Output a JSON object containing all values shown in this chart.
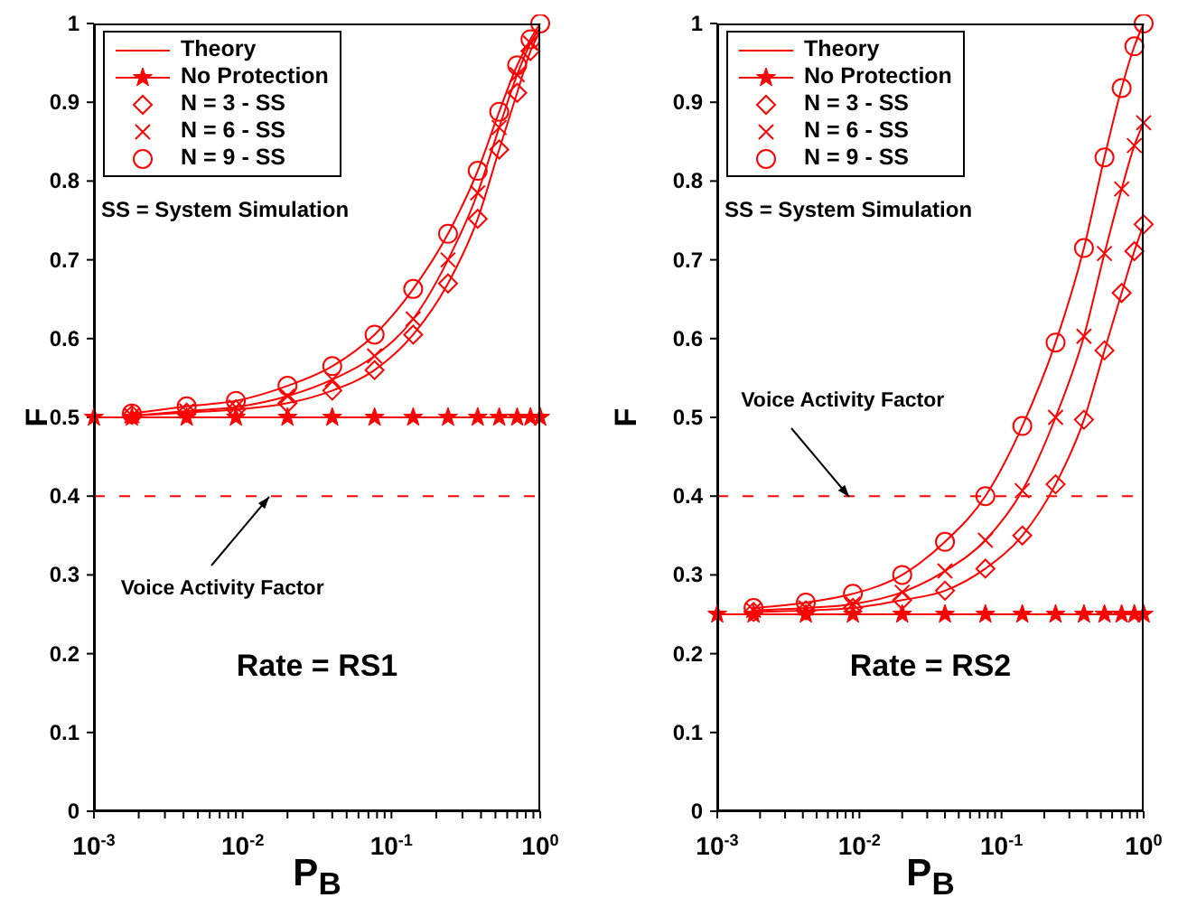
{
  "chart_data": [
    {
      "type": "line",
      "xlabel": "P$_{B}$",
      "ylabel": "F",
      "log": "x",
      "legend": "top left",
      "xlim": [
        0.001,
        1
      ],
      "ylim": [
        0,
        1
      ],
      "xticks": [
        {
          "value": 0.001,
          "label": "10$^{-3}$"
        },
        {
          "value": 0.002,
          "label": null
        },
        {
          "value": 0.003,
          "label": null
        },
        {
          "value": 0.004,
          "label": null
        },
        {
          "value": 0.005,
          "label": null
        },
        {
          "value": 0.006,
          "label": null
        },
        {
          "value": 0.007,
          "label": null
        },
        {
          "value": 0.008,
          "label": null
        },
        {
          "value": 0.009,
          "label": null
        },
        {
          "value": 0.01,
          "label": "10$^{-2}$"
        },
        {
          "value": 0.02,
          "label": null
        },
        {
          "value": 0.03,
          "label": null
        },
        {
          "value": 0.04,
          "label": null
        },
        {
          "value": 0.05,
          "label": null
        },
        {
          "value": 0.06,
          "label": null
        },
        {
          "value": 0.07,
          "label": null
        },
        {
          "value": 0.08,
          "label": null
        },
        {
          "value": 0.09,
          "label": null
        },
        {
          "value": 0.1,
          "label": "10$^{-1}$"
        },
        {
          "value": 0.2,
          "label": null
        },
        {
          "value": 0.3,
          "label": null
        },
        {
          "value": 0.4,
          "label": null
        },
        {
          "value": 0.5,
          "label": null
        },
        {
          "value": 0.6,
          "label": null
        },
        {
          "value": 0.7,
          "label": null
        },
        {
          "value": 0.8,
          "label": null
        },
        {
          "value": 0.9,
          "label": null
        },
        {
          "value": 1,
          "label": "10$^{0}$"
        }
      ],
      "yticks": [
        0,
        0.1,
        0.2,
        0.3,
        0.4,
        0.5,
        0.6,
        0.7,
        0.8,
        0.9,
        1
      ],
      "x": [
        0.0018,
        0.0042,
        0.009,
        0.02,
        0.04,
        0.077,
        0.14,
        0.24,
        0.38,
        0.53,
        0.7,
        0.86,
        1
      ],
      "series": [
        {
          "name": "Theory",
          "marker": "none",
          "color": "#ff0000",
          "values": [
            0.502,
            0.506,
            0.51,
            0.518,
            0.534,
            0.56,
            0.605,
            0.67,
            0.752,
            0.84,
            0.912,
            0.965,
            0.99
          ]
        },
        {
          "marker": "none",
          "color": "#ff0000",
          "values": [
            0.502,
            0.508,
            0.513,
            0.527,
            0.548,
            0.578,
            0.625,
            0.7,
            0.785,
            0.868,
            0.935,
            0.975,
            0.995
          ]
        },
        {
          "marker": "none",
          "color": "#ff0000",
          "values": [
            0.505,
            0.514,
            0.521,
            0.54,
            0.565,
            0.605,
            0.663,
            0.733,
            0.813,
            0.888,
            0.947,
            0.98,
            1
          ]
        },
        {
          "name": "No Protection",
          "marker": "star",
          "color": "#ff0000",
          "x": [
            0.001,
            0.0018,
            0.0042,
            0.009,
            0.02,
            0.04,
            0.077,
            0.14,
            0.24,
            0.38,
            0.53,
            0.7,
            0.86,
            1
          ],
          "values": [
            0.5,
            0.5,
            0.5,
            0.5,
            0.5,
            0.5,
            0.5,
            0.5,
            0.5,
            0.5,
            0.5,
            0.5,
            0.5,
            0.5
          ]
        },
        {
          "name": "N = 3 - SS",
          "type": "scatter",
          "marker": "diamond",
          "color": "#ff0000",
          "values": [
            0.503,
            0.506,
            0.51,
            0.518,
            0.534,
            0.56,
            0.605,
            0.67,
            0.752,
            0.84,
            0.912,
            0.965,
            null
          ]
        },
        {
          "name": "N = 6 - SS",
          "type": "scatter",
          "marker": "cross",
          "color": "#ff0000",
          "values": [
            0.502,
            0.508,
            0.513,
            0.527,
            0.548,
            0.578,
            0.625,
            0.7,
            0.785,
            0.868,
            0.935,
            0.975,
            null
          ]
        },
        {
          "name": "N = 9 - SS",
          "type": "scatter",
          "marker": "circle",
          "color": "#ff0000",
          "values": [
            0.505,
            0.514,
            0.521,
            0.54,
            0.565,
            0.605,
            0.663,
            0.733,
            0.813,
            0.888,
            0.947,
            0.98,
            1
          ]
        }
      ],
      "ref_lines": [
        {
          "axis": "y",
          "value": 0.4,
          "color": "#ff0000",
          "line_style": "dashed"
        }
      ],
      "annotations": [
        "SS = System Simulation",
        "Rate = RS1",
        {
          "text": "Voice Activity Factor",
          "x": 0.015,
          "y": 0.4
        }
      ]
    },
    {
      "type": "line",
      "xlabel": "P$_{B}$",
      "ylabel": "F",
      "log": "x",
      "legend": "top left",
      "xlim": [
        0.001,
        1
      ],
      "ylim": [
        0,
        1
      ],
      "xticks": [
        {
          "value": 0.001,
          "label": "10$^{-3}$"
        },
        {
          "value": 0.002,
          "label": null
        },
        {
          "value": 0.003,
          "label": null
        },
        {
          "value": 0.004,
          "label": null
        },
        {
          "value": 0.005,
          "label": null
        },
        {
          "value": 0.006,
          "label": null
        },
        {
          "value": 0.007,
          "label": null
        },
        {
          "value": 0.008,
          "label": null
        },
        {
          "value": 0.009,
          "label": null
        },
        {
          "value": 0.01,
          "label": "10$^{-2}$"
        },
        {
          "value": 0.02,
          "label": null
        },
        {
          "value": 0.03,
          "label": null
        },
        {
          "value": 0.04,
          "label": null
        },
        {
          "value": 0.05,
          "label": null
        },
        {
          "value": 0.06,
          "label": null
        },
        {
          "value": 0.07,
          "label": null
        },
        {
          "value": 0.08,
          "label": null
        },
        {
          "value": 0.09,
          "label": null
        },
        {
          "value": 0.1,
          "label": "10$^{-1}$"
        },
        {
          "value": 0.2,
          "label": null
        },
        {
          "value": 0.3,
          "label": null
        },
        {
          "value": 0.4,
          "label": null
        },
        {
          "value": 0.5,
          "label": null
        },
        {
          "value": 0.6,
          "label": null
        },
        {
          "value": 0.7,
          "label": null
        },
        {
          "value": 0.8,
          "label": null
        },
        {
          "value": 0.9,
          "label": null
        },
        {
          "value": 1,
          "label": "10$^{0}$"
        }
      ],
      "yticks": [
        0,
        0.1,
        0.2,
        0.3,
        0.4,
        0.5,
        0.6,
        0.7,
        0.8,
        0.9,
        1
      ],
      "x": [
        0.0018,
        0.0042,
        0.009,
        0.02,
        0.04,
        0.077,
        0.14,
        0.24,
        0.38,
        0.53,
        0.7,
        0.86,
        1
      ],
      "series": [
        {
          "name": "Theory",
          "marker": "none",
          "color": "#ff0000",
          "values": [
            0.253,
            0.255,
            0.258,
            0.268,
            0.28,
            0.308,
            0.35,
            0.415,
            0.497,
            0.585,
            0.658,
            0.711,
            0.745
          ]
        },
        {
          "marker": "none",
          "color": "#ff0000",
          "values": [
            0.255,
            0.258,
            0.263,
            0.278,
            0.305,
            0.344,
            0.407,
            0.5,
            0.603,
            0.708,
            0.79,
            0.845,
            0.874
          ]
        },
        {
          "marker": "none",
          "color": "#ff0000",
          "values": [
            0.258,
            0.265,
            0.276,
            0.3,
            0.342,
            0.4,
            0.489,
            0.595,
            0.715,
            0.83,
            0.918,
            0.971,
            1
          ]
        },
        {
          "name": "No Protection",
          "marker": "star",
          "color": "#ff0000",
          "x": [
            0.001,
            0.0018,
            0.0042,
            0.009,
            0.02,
            0.04,
            0.077,
            0.14,
            0.24,
            0.38,
            0.53,
            0.7,
            0.86,
            1
          ],
          "values": [
            0.25,
            0.25,
            0.25,
            0.25,
            0.25,
            0.25,
            0.25,
            0.25,
            0.25,
            0.25,
            0.25,
            0.25,
            0.25,
            0.25
          ]
        },
        {
          "name": "N = 3 - SS",
          "type": "scatter",
          "marker": "diamond",
          "color": "#ff0000",
          "values": [
            0.253,
            0.255,
            0.258,
            0.268,
            0.28,
            0.308,
            0.35,
            0.415,
            0.497,
            0.585,
            0.658,
            0.711,
            0.745
          ]
        },
        {
          "name": "N = 6 - SS",
          "type": "scatter",
          "marker": "cross",
          "color": "#ff0000",
          "values": [
            0.255,
            0.258,
            0.263,
            0.278,
            0.305,
            0.344,
            0.407,
            0.5,
            0.603,
            0.708,
            0.79,
            0.845,
            0.874
          ]
        },
        {
          "name": "N = 9 - SS",
          "type": "scatter",
          "marker": "circle",
          "color": "#ff0000",
          "values": [
            0.258,
            0.265,
            0.276,
            0.3,
            0.342,
            0.4,
            0.489,
            0.595,
            0.715,
            0.83,
            0.918,
            0.971,
            1
          ]
        }
      ],
      "ref_lines": [
        {
          "axis": "y",
          "value": 0.4,
          "color": "#ff0000",
          "line_style": "dashed"
        }
      ],
      "annotations": [
        "SS = System Simulation",
        "Rate = RS2",
        {
          "text": "Voice Activity Factor",
          "x": 0.0085,
          "y": 0.4
        }
      ]
    }
  ]
}
